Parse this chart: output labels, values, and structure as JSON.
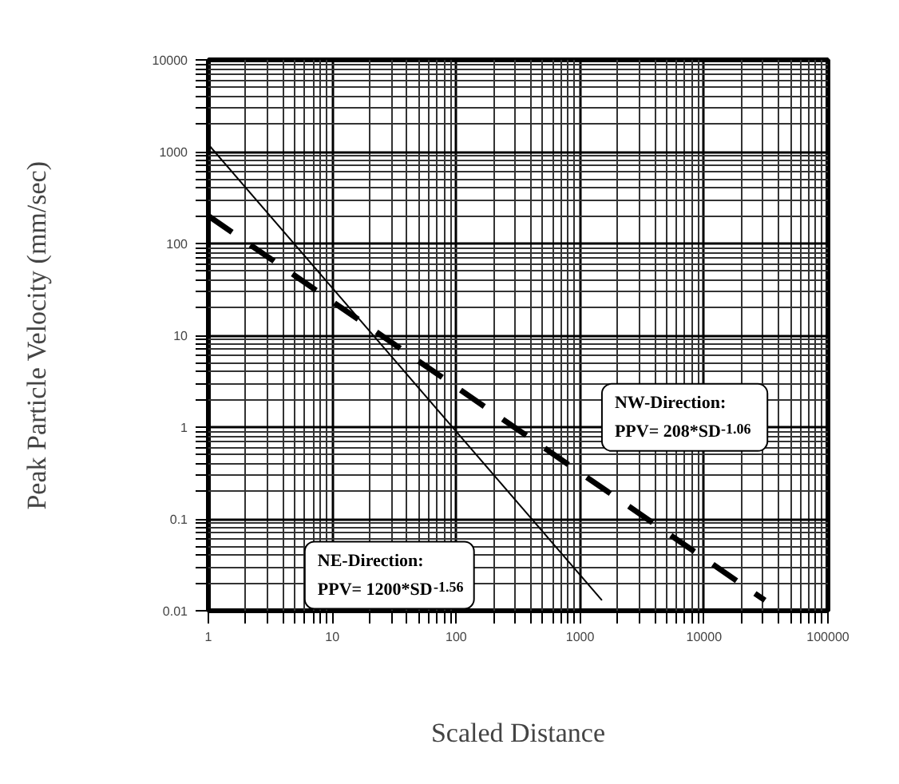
{
  "chart_data": {
    "type": "line",
    "xlabel": "Scaled Distance",
    "ylabel": "Peak Particle Velocity (mm/sec)",
    "log": "xy",
    "xlim": [
      1,
      100000
    ],
    "ylim": [
      0.01,
      10000
    ],
    "xticks": [
      1,
      10,
      100,
      1000,
      10000,
      100000
    ],
    "yticks": [
      0.01,
      0.1,
      1,
      10,
      100,
      1000,
      10000
    ],
    "grid": true,
    "series": [
      {
        "color": "#000000",
        "x": [
          1,
          1500
        ],
        "values": [
          1200,
          0.013
        ],
        "line_style": "solid"
      },
      {
        "color": "#000000",
        "x": [
          1,
          31000
        ],
        "values": [
          200,
          0.013
        ],
        "line_style": "dashed"
      }
    ],
    "annotations": [
      "NE-Direction:\nPPV= 1200*SD$^{-1.56}$",
      "NW-Direction:\nPPV= 208*SD$^{-1.06}$"
    ]
  }
}
